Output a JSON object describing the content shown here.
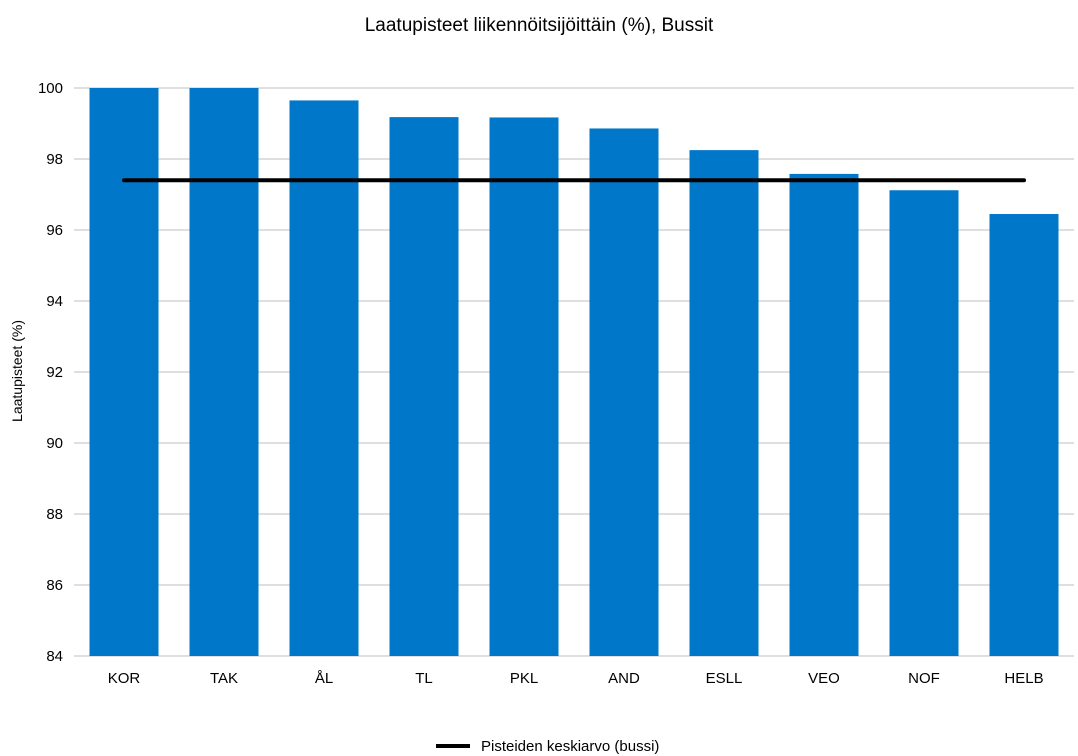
{
  "chart_data": {
    "type": "bar",
    "title": "Laatupisteet liikennöitsijöittäin (%), Bussit",
    "xlabel": "",
    "ylabel": "Laatupisteet (%)",
    "ylim": [
      84,
      100
    ],
    "yticks": [
      84,
      86,
      88,
      90,
      92,
      94,
      96,
      98,
      100
    ],
    "grid": true,
    "categories": [
      "KOR",
      "TAK",
      "ÅL",
      "TL",
      "PKL",
      "AND",
      "ESLL",
      "VEO",
      "NOF",
      "HELB"
    ],
    "series": [
      {
        "values": [
          100.0,
          100.0,
          99.65,
          99.18,
          99.17,
          98.86,
          98.25,
          97.58,
          97.12,
          96.45
        ],
        "color": "#0077c8"
      }
    ],
    "reference_line": {
      "name": "Pisteiden keskiarvo (bussi)",
      "value": 97.4,
      "color": "#000000"
    },
    "legend_position": "bottom-center"
  }
}
